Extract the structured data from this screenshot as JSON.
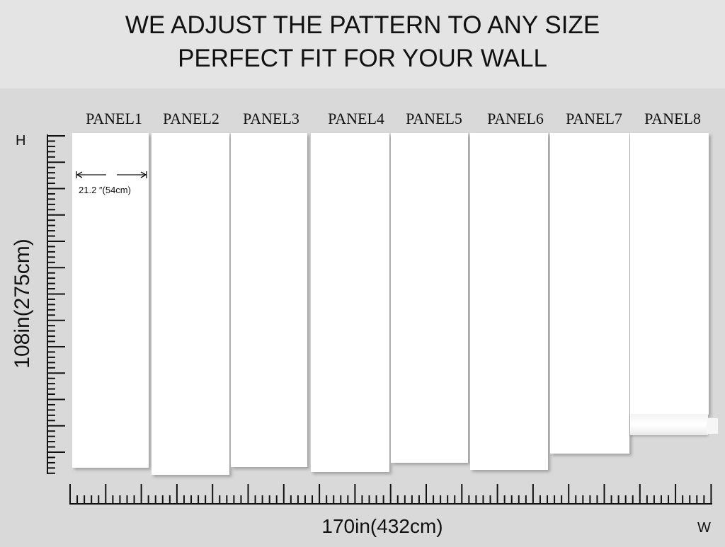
{
  "title": {
    "line1": "WE ADJUST THE PATTERN TO ANY SIZE",
    "line2": "PERFECT FIT FOR YOUR WALL"
  },
  "panels": [
    "PANEL1",
    "PANEL2",
    "PANEL3",
    "PANEL4",
    "PANEL5",
    "PANEL6",
    "PANEL7",
    "PANEL8"
  ],
  "panel_width_label": "21.2  ″(54cm)",
  "height_label": "108in(275cm)",
  "width_label": "170in(432cm)",
  "h_marker": "H",
  "w_marker": "W"
}
